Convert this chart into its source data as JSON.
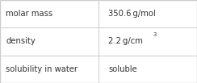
{
  "rows": [
    {
      "label": "molar mass",
      "value": "350.6 g/mol",
      "superscript": null
    },
    {
      "label": "density",
      "value": "2.2 g/cm",
      "superscript": "3"
    },
    {
      "label": "solubility in water",
      "value": "soluble",
      "superscript": null
    }
  ],
  "col_split": 0.5,
  "background_color": "#ffffff",
  "border_color": "#cccccc",
  "text_color": "#333333",
  "label_font_size": 7.2,
  "value_font_size": 7.2,
  "fig_width": 2.44,
  "fig_height": 1.03,
  "dpi": 100
}
